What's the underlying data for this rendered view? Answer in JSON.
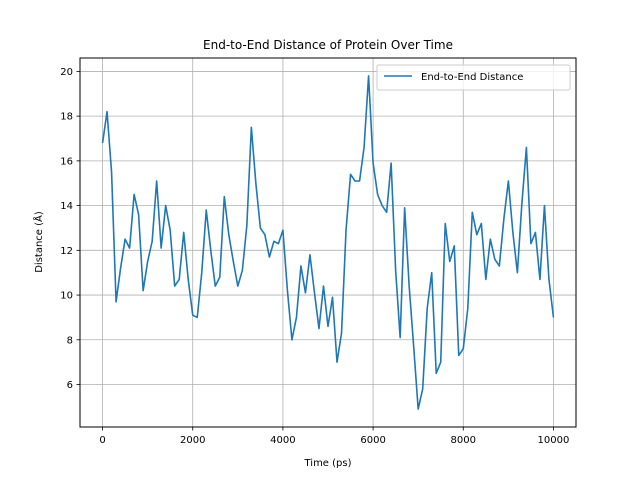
{
  "chart_data": {
    "type": "line",
    "title": "End-to-End Distance of Protein Over Time",
    "xlabel": "Time (ps)",
    "ylabel": "Distance (Å)",
    "xlim": [
      -500,
      10500
    ],
    "ylim": [
      4.1,
      20.6
    ],
    "xticks": [
      0,
      2000,
      4000,
      6000,
      8000,
      10000
    ],
    "yticks": [
      6,
      8,
      10,
      12,
      14,
      16,
      18,
      20
    ],
    "grid": true,
    "legend_position": "upper right",
    "series": [
      {
        "name": "End-to-End Distance",
        "color": "#1f77b4",
        "x": [
          0,
          100,
          200,
          300,
          400,
          500,
          600,
          700,
          800,
          900,
          1000,
          1100,
          1200,
          1300,
          1400,
          1500,
          1600,
          1700,
          1800,
          1900,
          2000,
          2100,
          2200,
          2300,
          2400,
          2500,
          2600,
          2700,
          2800,
          2900,
          3000,
          3100,
          3200,
          3300,
          3400,
          3500,
          3600,
          3700,
          3800,
          3900,
          4000,
          4100,
          4200,
          4300,
          4400,
          4500,
          4600,
          4700,
          4800,
          4900,
          5000,
          5100,
          5200,
          5300,
          5400,
          5500,
          5600,
          5700,
          5800,
          5900,
          6000,
          6100,
          6200,
          6300,
          6400,
          6500,
          6600,
          6700,
          6800,
          6900,
          7000,
          7100,
          7200,
          7300,
          7400,
          7500,
          7600,
          7700,
          7800,
          7900,
          8000,
          8100,
          8200,
          8300,
          8400,
          8500,
          8600,
          8700,
          8800,
          8900,
          9000,
          9100,
          9200,
          9300,
          9400,
          9500,
          9600,
          9700,
          9800,
          9900,
          10000
        ],
        "y": [
          16.8,
          18.2,
          15.5,
          9.7,
          11.2,
          12.5,
          12.1,
          14.5,
          13.6,
          10.2,
          11.5,
          12.4,
          15.1,
          12.1,
          14.0,
          12.9,
          10.4,
          10.7,
          12.8,
          10.7,
          9.1,
          9.0,
          11.0,
          13.8,
          12.0,
          10.4,
          10.8,
          14.4,
          12.7,
          11.5,
          10.4,
          11.1,
          13.1,
          17.5,
          15.0,
          13.0,
          12.7,
          11.7,
          12.4,
          12.3,
          12.9,
          10.2,
          8.0,
          9.0,
          11.3,
          10.1,
          11.8,
          10.1,
          8.5,
          10.4,
          8.6,
          9.9,
          7.0,
          8.3,
          12.9,
          15.4,
          15.1,
          15.1,
          16.6,
          19.8,
          15.9,
          14.5,
          14.0,
          13.7,
          15.9,
          11.1,
          8.1,
          13.9,
          10.4,
          7.7,
          4.9,
          5.8,
          9.4,
          11.0,
          6.5,
          7.0,
          13.2,
          11.5,
          12.2,
          7.3,
          7.6,
          9.4,
          13.7,
          12.7,
          13.2,
          10.7,
          12.5,
          11.6,
          11.3,
          13.4,
          15.1,
          12.8,
          11.0,
          14.1,
          16.6,
          12.3,
          12.8,
          10.7,
          14.0,
          10.7,
          9.0
        ]
      }
    ]
  }
}
